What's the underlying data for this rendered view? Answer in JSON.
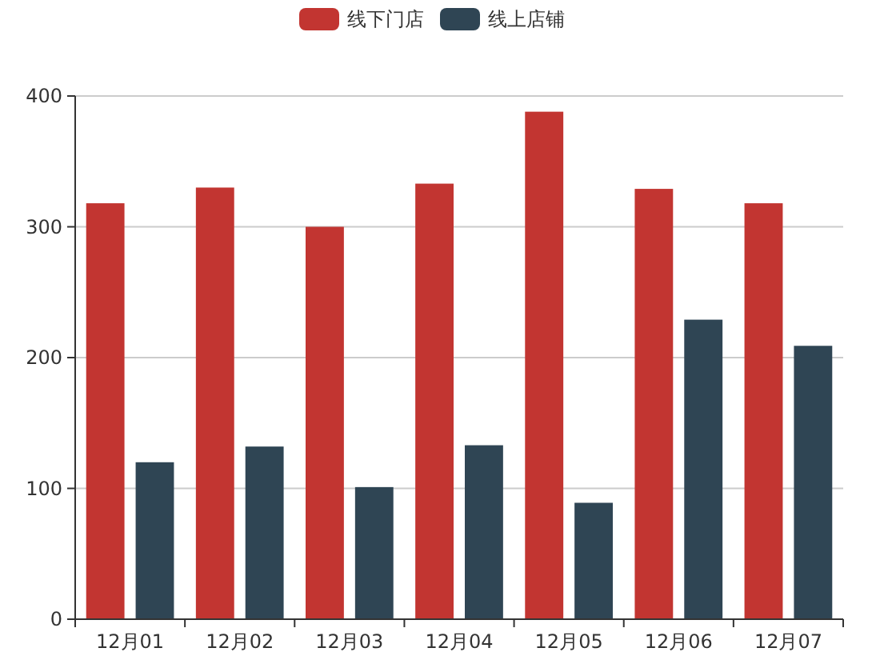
{
  "chart_data": {
    "type": "bar",
    "categories": [
      "12月01",
      "12月02",
      "12月03",
      "12月04",
      "12月05",
      "12月06",
      "12月07"
    ],
    "series": [
      {
        "name": "线下门店",
        "color": "#c23531",
        "values": [
          318,
          330,
          300,
          333,
          388,
          329,
          318
        ]
      },
      {
        "name": "线上店铺",
        "color": "#2f4554",
        "values": [
          120,
          132,
          101,
          133,
          89,
          229,
          209
        ]
      }
    ],
    "ylim": [
      0,
      400
    ],
    "yticks": [
      0,
      100,
      200,
      300,
      400
    ],
    "grid": "y",
    "legend": "top"
  }
}
